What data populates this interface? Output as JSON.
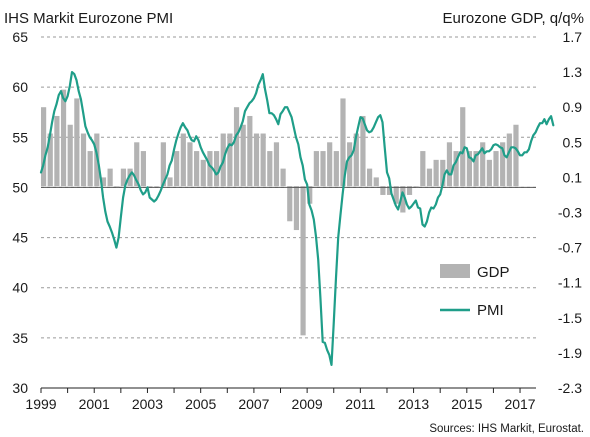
{
  "chart_data": {
    "type": "bar+line",
    "title_left": "IHS Markit Eurozone PMI",
    "title_right": "Eurozone GDP, q/q%",
    "source": "Sources: IHS Markit, Eurostat.",
    "x_ticks": [
      "1999",
      "2001",
      "2003",
      "2005",
      "2007",
      "2009",
      "2011",
      "2013",
      "2015",
      "2017"
    ],
    "x_range": [
      1999.0,
      2017.6
    ],
    "left_axis": {
      "range": [
        30,
        65
      ],
      "ticks": [
        "30",
        "35",
        "40",
        "45",
        "50",
        "55",
        "60",
        "65"
      ]
    },
    "right_axis": {
      "range": [
        -2.3,
        1.7
      ],
      "ticks": [
        "-2.3",
        "-1.9",
        "-1.5",
        "-1.1",
        "-0.7",
        "-0.3",
        "0.1",
        "0.5",
        "0.9",
        "1.3",
        "1.7"
      ]
    },
    "grid": "horizontal dashed",
    "legend_position": "bottom-right",
    "series": [
      {
        "name": "GDP",
        "kind": "bar",
        "axis": "right",
        "color": "#b3b3b3",
        "x_start": 1999.0,
        "period": 0.25,
        "values": [
          0.9,
          0.6,
          0.8,
          1.1,
          0.7,
          1.0,
          0.6,
          0.4,
          0.6,
          0.1,
          0.2,
          0.0,
          0.2,
          0.2,
          0.5,
          0.4,
          0.0,
          0.0,
          0.5,
          0.1,
          0.4,
          0.6,
          0.5,
          0.4,
          0.3,
          0.4,
          0.4,
          0.6,
          0.6,
          0.9,
          0.7,
          0.8,
          0.6,
          0.6,
          0.4,
          0.5,
          0.2,
          -0.4,
          -0.5,
          -1.7,
          -0.2,
          0.4,
          0.4,
          0.5,
          0.4,
          1.0,
          0.5,
          0.6,
          0.8,
          0.2,
          0.1,
          -0.1,
          -0.1,
          -0.2,
          -0.3,
          -0.1,
          0.0,
          0.4,
          0.2,
          0.3,
          0.3,
          0.5,
          0.4,
          0.9,
          0.4,
          0.4,
          0.5,
          0.3,
          0.4,
          0.5,
          0.6,
          0.7
        ]
      },
      {
        "name": "PMI",
        "kind": "line",
        "axis": "left",
        "color": "#1f9e89",
        "x_start": 1999.0,
        "period": 0.0833333,
        "values": [
          51.5,
          52.2,
          53.2,
          54.0,
          55.2,
          56.5,
          57.6,
          58.3,
          59.2,
          59.6,
          58.9,
          58.6,
          59.1,
          60.1,
          61.5,
          61.3,
          60.7,
          59.6,
          58.8,
          57.5,
          56.1,
          55.5,
          55.0,
          54.7,
          54.3,
          53.5,
          52.3,
          50.8,
          49.0,
          47.6,
          46.6,
          46.1,
          45.5,
          44.8,
          44.0,
          45.0,
          47.0,
          49.0,
          50.2,
          50.8,
          51.2,
          51.5,
          51.2,
          50.7,
          50.3,
          49.7,
          49.3,
          49.5,
          50.0,
          49.0,
          48.8,
          48.6,
          48.8,
          49.2,
          49.7,
          50.3,
          50.8,
          51.3,
          52.2,
          52.7,
          53.8,
          54.7,
          55.4,
          56.0,
          56.4,
          56.0,
          55.7,
          55.1,
          54.7,
          54.6,
          55.1,
          54.7,
          54.0,
          53.5,
          53.1,
          52.7,
          52.2,
          52.0,
          51.7,
          51.3,
          51.5,
          52.1,
          52.5,
          53.3,
          53.9,
          54.3,
          54.2,
          54.5,
          55.2,
          55.5,
          56.0,
          56.6,
          57.6,
          58.0,
          58.4,
          58.6,
          58.9,
          59.4,
          60.2,
          60.7,
          61.3,
          59.8,
          58.7,
          57.4,
          57.4,
          57.2,
          56.8,
          56.3,
          57.3,
          57.6,
          58.0,
          58.0,
          57.5,
          57.0,
          56.0,
          55.0,
          54.3,
          53.0,
          52.2,
          50.8,
          50.3,
          48.3,
          47.7,
          46.8,
          45.1,
          42.8,
          39.0,
          34.6,
          34.5,
          33.8,
          33.3,
          32.3,
          36.4,
          41.0,
          45.0,
          47.2,
          49.3,
          51.2,
          52.6,
          53.0,
          53.2,
          53.7,
          55.0,
          56.0,
          57.0,
          56.9,
          56.3,
          55.7,
          55.5,
          55.6,
          56.0,
          56.5,
          57.0,
          57.2,
          56.5,
          54.0,
          51.5,
          50.9,
          49.4,
          48.8,
          48.2,
          47.8,
          48.6,
          49.5,
          49.0,
          48.3,
          47.9,
          48.1,
          48.4,
          48.7,
          48.0,
          47.9,
          46.3,
          46.1,
          46.6,
          47.5,
          48.0,
          47.9,
          48.3,
          49.0,
          49.3,
          50.2,
          51.3,
          51.7,
          51.3,
          51.3,
          52.2,
          52.5,
          53.0,
          53.5,
          53.4,
          54.0,
          53.9,
          53.0,
          52.9,
          52.6,
          53.2,
          53.3,
          53.6,
          53.9,
          53.4,
          53.6,
          53.6,
          53.8,
          54.2,
          54.3,
          54.2,
          54.0,
          53.9,
          53.2,
          53.0,
          53.5,
          54.0,
          54.0,
          53.9,
          53.6,
          53.2,
          53.2,
          53.5,
          53.5,
          53.8,
          54.6,
          55.2,
          55.5,
          56.0,
          56.4,
          56.4,
          56.8,
          56.3,
          56.8,
          57.1,
          56.2
        ]
      }
    ]
  }
}
